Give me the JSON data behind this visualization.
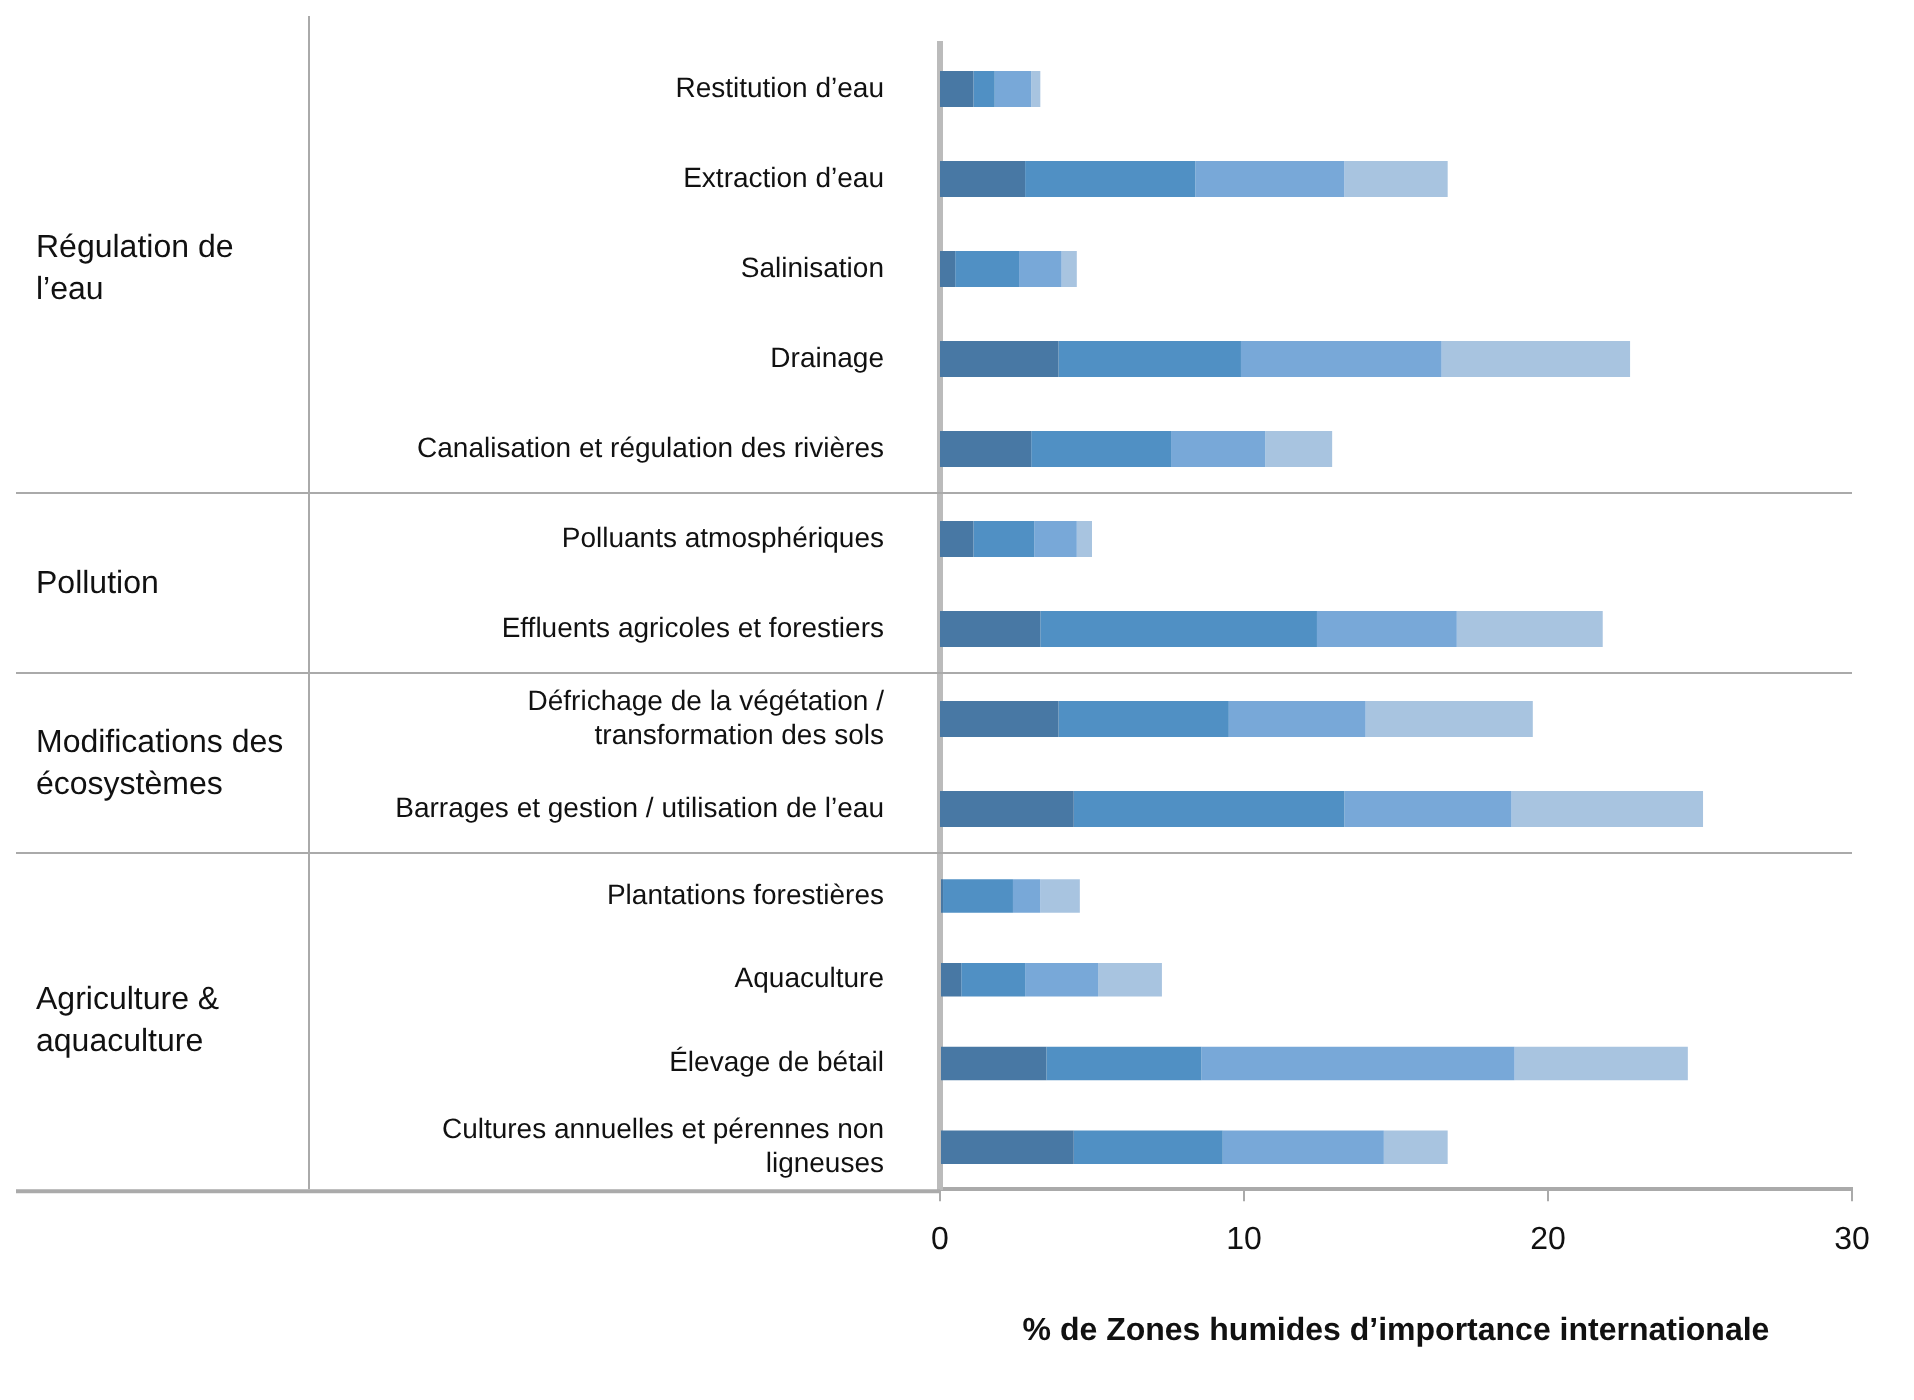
{
  "chart_data": [
    {
      "type": "bar",
      "orientation": "horizontal",
      "stacked": true,
      "ylabel": "Régulation de l’eau",
      "tick_labels": "y",
      "xlim": [
        0,
        30
      ],
      "grid": false,
      "legend": false,
      "categories": [
        "Restitution d’eau",
        "Extraction d’eau",
        "Salinisation",
        "Drainage",
        "Canalisation et régulation des rivières"
      ],
      "series": [
        {
          "color": "#4878a4",
          "values": [
            1.1,
            2.8,
            0.5,
            3.9,
            3.0
          ]
        },
        {
          "color": "#5090c4",
          "values": [
            0.7,
            5.6,
            2.1,
            6.0,
            4.6
          ]
        },
        {
          "color": "#78a8d8",
          "values": [
            1.2,
            4.9,
            1.4,
            6.6,
            3.1
          ]
        },
        {
          "color": "#a8c4e0",
          "values": [
            0.3,
            3.4,
            0.5,
            6.2,
            2.2
          ]
        }
      ]
    },
    {
      "type": "bar",
      "orientation": "horizontal",
      "stacked": true,
      "ylabel": "Pollution",
      "tick_labels": "y",
      "xlim": [
        0,
        30
      ],
      "grid": false,
      "legend": false,
      "categories": [
        "Polluants atmosphériques",
        "Effluents agricoles et forestiers"
      ],
      "series": [
        {
          "color": "#4878a4",
          "values": [
            1.1,
            3.3
          ]
        },
        {
          "color": "#5090c4",
          "values": [
            2.0,
            9.1
          ]
        },
        {
          "color": "#78a8d8",
          "values": [
            1.4,
            4.6
          ]
        },
        {
          "color": "#a8c4e0",
          "values": [
            0.5,
            4.8
          ]
        }
      ]
    },
    {
      "type": "bar",
      "orientation": "horizontal",
      "stacked": true,
      "ylabel": "Modifications des écosystèmes",
      "tick_labels": "y",
      "xlim": [
        0,
        30
      ],
      "grid": false,
      "legend": false,
      "categories": [
        "Défrichage de la végétation / transformation des sols",
        "Barrages et gestion / utilisation de l’eau"
      ],
      "series": [
        {
          "color": "#4878a4",
          "values": [
            3.9,
            4.4
          ]
        },
        {
          "color": "#5090c4",
          "values": [
            5.6,
            8.9
          ]
        },
        {
          "color": "#78a8d8",
          "values": [
            4.5,
            5.5
          ]
        },
        {
          "color": "#a8c4e0",
          "values": [
            5.5,
            6.3
          ]
        }
      ]
    },
    {
      "type": "bar",
      "orientation": "horizontal",
      "stacked": true,
      "ylabel": "Agriculture & aquaculture",
      "xlim": [
        0,
        30
      ],
      "xticks": [
        0,
        10,
        20,
        30
      ],
      "xlabel": "% de Zones humides d’importance internationale",
      "grid": false,
      "legend": false,
      "categories": [
        "Plantations forestières",
        "Aquaculture",
        "Élevage de bétail",
        "Cultures annuelles et pérennes non ligneuses"
      ],
      "series": [
        {
          "color": "#4878a4",
          "values": [
            0.1,
            0.7,
            3.5,
            4.4
          ]
        },
        {
          "color": "#5090c4",
          "values": [
            2.3,
            2.1,
            5.1,
            4.9
          ]
        },
        {
          "color": "#78a8d8",
          "values": [
            0.9,
            2.4,
            10.3,
            5.3
          ]
        },
        {
          "color": "#a8c4e0",
          "values": [
            1.3,
            2.1,
            5.7,
            2.1
          ]
        }
      ]
    }
  ]
}
